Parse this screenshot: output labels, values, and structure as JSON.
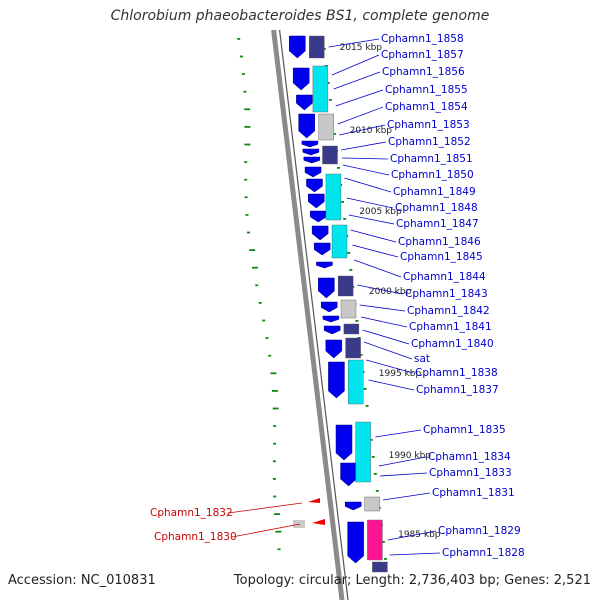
{
  "title": "Chlorobium phaeobacteroides BS1, complete genome",
  "accession": "Accession: NC_010831",
  "topology": "Topology: circular; Length: 2,736,403 bp; Genes: 2,521",
  "colors": {
    "forward_strand": "#0000ee",
    "cds_cyan": "#00e5ee",
    "cds_slate": "#3a3a8a",
    "cds_grey": "#c8c8c8",
    "cds_pink": "#ff1493",
    "reverse_strand": "#ee0000",
    "gc_skew": "#118811",
    "backbone": "#8a8a8a",
    "label_blue": "#0000cc",
    "label_red": "#cc0000"
  },
  "kbp_markers": [
    "2015 kbp",
    "2010 kbp",
    "2005 kbp",
    "2000 kbp",
    "1995 kbp",
    "1990 kbp",
    "1985 kbp"
  ],
  "forward_genes": [
    "Cphamn1_1858",
    "Cphamn1_1857",
    "Cphamn1_1856",
    "Cphamn1_1855",
    "Cphamn1_1854",
    "Cphamn1_1853",
    "Cphamn1_1852",
    "Cphamn1_1851",
    "Cphamn1_1850",
    "Cphamn1_1849",
    "Cphamn1_1848",
    "Cphamn1_1847",
    "Cphamn1_1846",
    "Cphamn1_1845",
    "Cphamn1_1844",
    "Cphamn1_1843",
    "Cphamn1_1842",
    "Cphamn1_1841",
    "Cphamn1_1840",
    "sat",
    "Cphamn1_1838",
    "Cphamn1_1837",
    "Cphamn1_1835",
    "Cphamn1_1834",
    "Cphamn1_1833",
    "Cphamn1_1831",
    "Cphamn1_1829",
    "Cphamn1_1828"
  ],
  "reverse_genes": [
    "Cphamn1_1832",
    "Cphamn1_1830"
  ]
}
